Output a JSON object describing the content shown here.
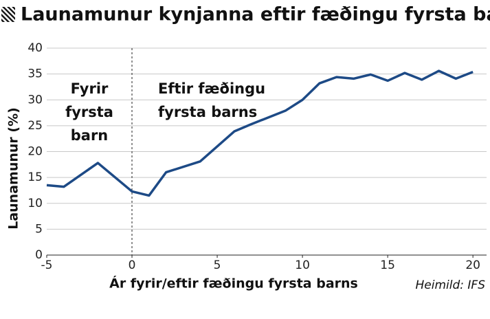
{
  "chart_data": {
    "type": "line",
    "title": "Launamunur kynjanna eftir fæðingu fyrsta barns",
    "ylabel": "Launamunur (%)",
    "xlabel": "Ár fyrir/eftir fæðingu fyrsta barns",
    "source": "Heimild: IFS",
    "annotations": [
      [
        "Fyrir",
        "fyrsta",
        "barn"
      ],
      [
        "Eftir fæðingu",
        "fyrsta barns"
      ]
    ],
    "vline": 0,
    "x": [
      -5,
      -4,
      -2,
      0,
      1,
      2,
      4,
      6,
      7,
      9,
      10,
      11,
      12,
      13,
      14,
      15,
      16,
      17,
      18,
      19,
      20
    ],
    "values": [
      13.5,
      13.2,
      17.8,
      12.3,
      11.5,
      16.0,
      18.1,
      23.9,
      25.3,
      27.9,
      30.0,
      33.2,
      34.4,
      34.1,
      34.9,
      33.7,
      35.2,
      33.9,
      35.6,
      34.1,
      35.4
    ],
    "color": "#1d4a86",
    "xlim": [
      -5,
      20.8
    ],
    "ylim": [
      0,
      40
    ],
    "xticks": [
      -5,
      0,
      5,
      10,
      15,
      20
    ],
    "yticks": [
      0,
      5,
      10,
      15,
      20,
      25,
      30,
      35,
      40
    ],
    "grid": true
  }
}
